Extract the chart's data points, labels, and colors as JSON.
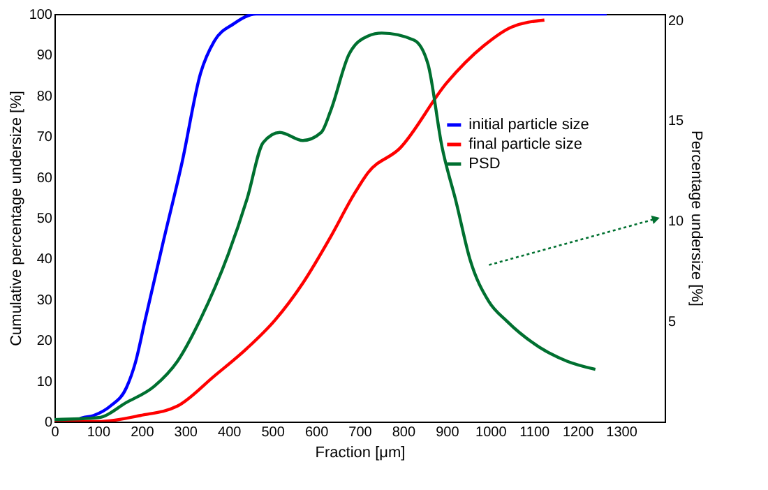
{
  "chart_data": {
    "type": "line",
    "xlabel": "Fraction [μm]",
    "ylabel": "Cumulative percentage undersize [%]",
    "y2label": "Percentage undersize [%]",
    "xlim": [
      0,
      1400
    ],
    "xticks": [
      0,
      100,
      200,
      300,
      400,
      500,
      600,
      700,
      800,
      900,
      1000,
      1100,
      1200,
      1300
    ],
    "ylim": [
      0,
      100
    ],
    "yticks": [
      0,
      10,
      20,
      30,
      40,
      50,
      60,
      70,
      80,
      90,
      100
    ],
    "y2lim": [
      0,
      20.3
    ],
    "y2ticks": [
      5,
      10,
      15,
      20
    ],
    "grid": false,
    "legend": "right",
    "marker": "none",
    "line_style": "solid",
    "series": [
      {
        "name": "initial particle size",
        "color": "#0000ff",
        "x": [
          0,
          50,
          58,
          90,
          128,
          165,
          186,
          208,
          250,
          293,
          335,
          367,
          410,
          463,
          600,
          900,
          1267
        ],
        "values": [
          0,
          0,
          0.7,
          1.5,
          3.8,
          8.3,
          14.6,
          24.9,
          44.3,
          63.7,
          85.4,
          93.4,
          97.5,
          100,
          100,
          100,
          100
        ]
      },
      {
        "name": "final particle size",
        "color": "#ff0000",
        "x": [
          0,
          100,
          197,
          282,
          367,
          442,
          506,
          570,
          634,
          687,
          719,
          793,
          900,
          985,
          1049,
          1124
        ],
        "values": [
          0,
          0,
          1.5,
          3.8,
          11.2,
          18,
          24.9,
          34,
          45.4,
          55.7,
          61,
          67.1,
          83.1,
          92.2,
          96.8,
          98.5
        ]
      },
      {
        "name": "PSD",
        "color": "#007030",
        "axis": "y2",
        "x": [
          0,
          101,
          165,
          229,
          282,
          335,
          399,
          442,
          479,
          517,
          570,
          612,
          634,
          676,
          719,
          751,
          825,
          857,
          889,
          922,
          953,
          996,
          1038,
          1113,
          1177,
          1241
        ],
        "values": [
          0.1,
          0.2,
          0.95,
          1.76,
          3.0,
          5.1,
          8.35,
          11.1,
          13.9,
          14.4,
          14.0,
          14.4,
          15.5,
          18.3,
          19.2,
          19.35,
          19.0,
          17.8,
          13.7,
          10.9,
          8.1,
          6.0,
          5.0,
          3.7,
          3.0,
          2.6
        ]
      },
      {
        "type": "line",
        "line_style": "dotted",
        "marker": "triangle",
        "color": "#007030",
        "axis": "y2",
        "x": [
          997,
          1380
        ],
        "values": [
          7.8,
          10.1
        ]
      }
    ]
  }
}
